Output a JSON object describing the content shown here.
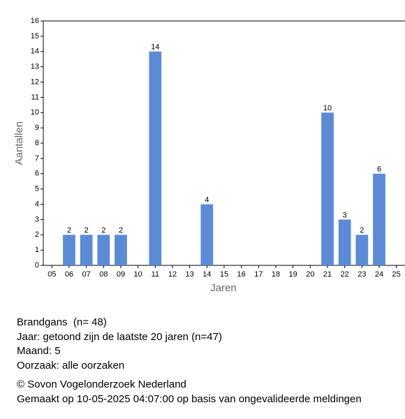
{
  "chart_data": {
    "type": "bar",
    "x_label": "Jaren",
    "y_label": "Aantallen",
    "categories": [
      "05",
      "06",
      "07",
      "08",
      "09",
      "10",
      "11",
      "12",
      "13",
      "14",
      "15",
      "16",
      "17",
      "18",
      "19",
      "20",
      "21",
      "22",
      "23",
      "24",
      "25"
    ],
    "values": [
      null,
      2,
      2,
      2,
      2,
      null,
      14,
      null,
      null,
      4,
      null,
      null,
      null,
      null,
      null,
      null,
      10,
      3,
      2,
      6,
      null
    ],
    "color": "#5b8bd5",
    "ylim": [
      0,
      16
    ],
    "yticks": [
      0,
      1,
      2,
      3,
      4,
      5,
      6,
      7,
      8,
      9,
      10,
      11,
      12,
      13,
      14,
      15,
      16
    ]
  },
  "info": {
    "lines": [
      "Brandgans  (n= 48)",
      "Jaar: getoond zijn de laatste 20 jaren (n=47)",
      "Maand: 5",
      "Oorzaak: alle oorzaken"
    ],
    "footer": [
      "© Sovon Vogelonderzoek Nederland",
      "Gemaakt op 10-05-2025 04:07:00 op basis van ongevalideerde meldingen"
    ]
  }
}
